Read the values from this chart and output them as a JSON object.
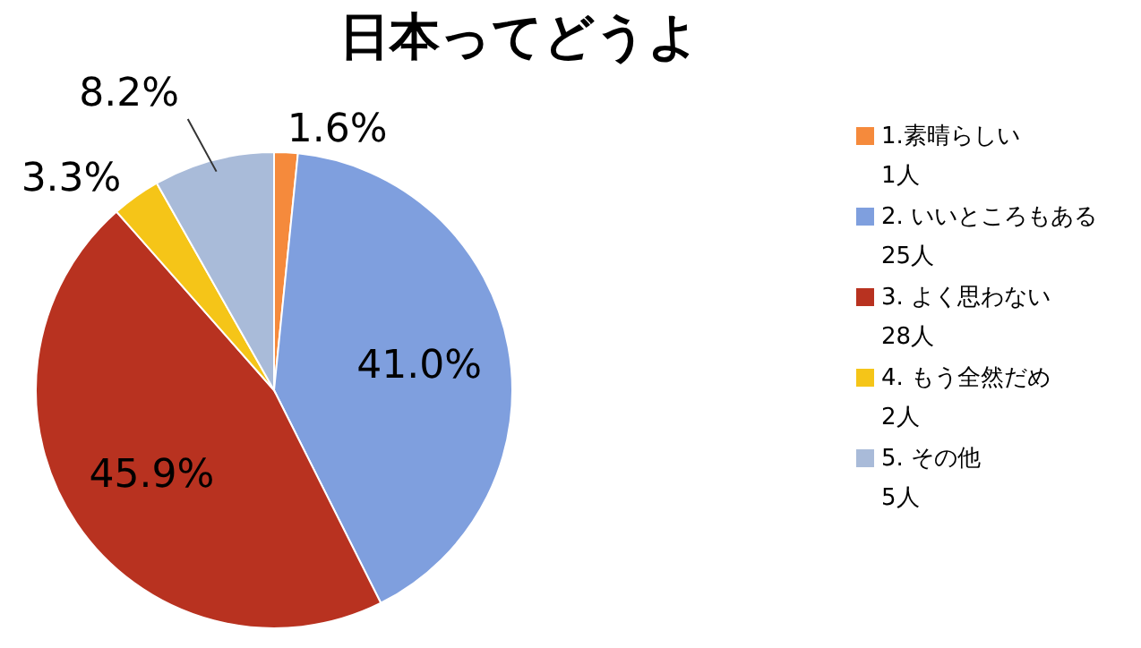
{
  "chart_data": {
    "type": "pie",
    "title": "日本ってどうよ",
    "categories": [
      "1.素晴らしい\n1人",
      "2. いいところもある\n25人",
      "3. よく思わない\n28人",
      "4. もう全然だめ\n2人",
      "5. その他\n5人"
    ],
    "values": [
      1.6,
      41.0,
      45.9,
      3.3,
      8.2
    ],
    "value_labels": [
      "1.6%",
      "41.0%",
      "45.9%",
      "3.3%",
      "8.2%"
    ],
    "colors": [
      "#f58a3c",
      "#7f9fde",
      "#b83220",
      "#f5c518",
      "#a9bbd9"
    ],
    "legend": "right"
  }
}
